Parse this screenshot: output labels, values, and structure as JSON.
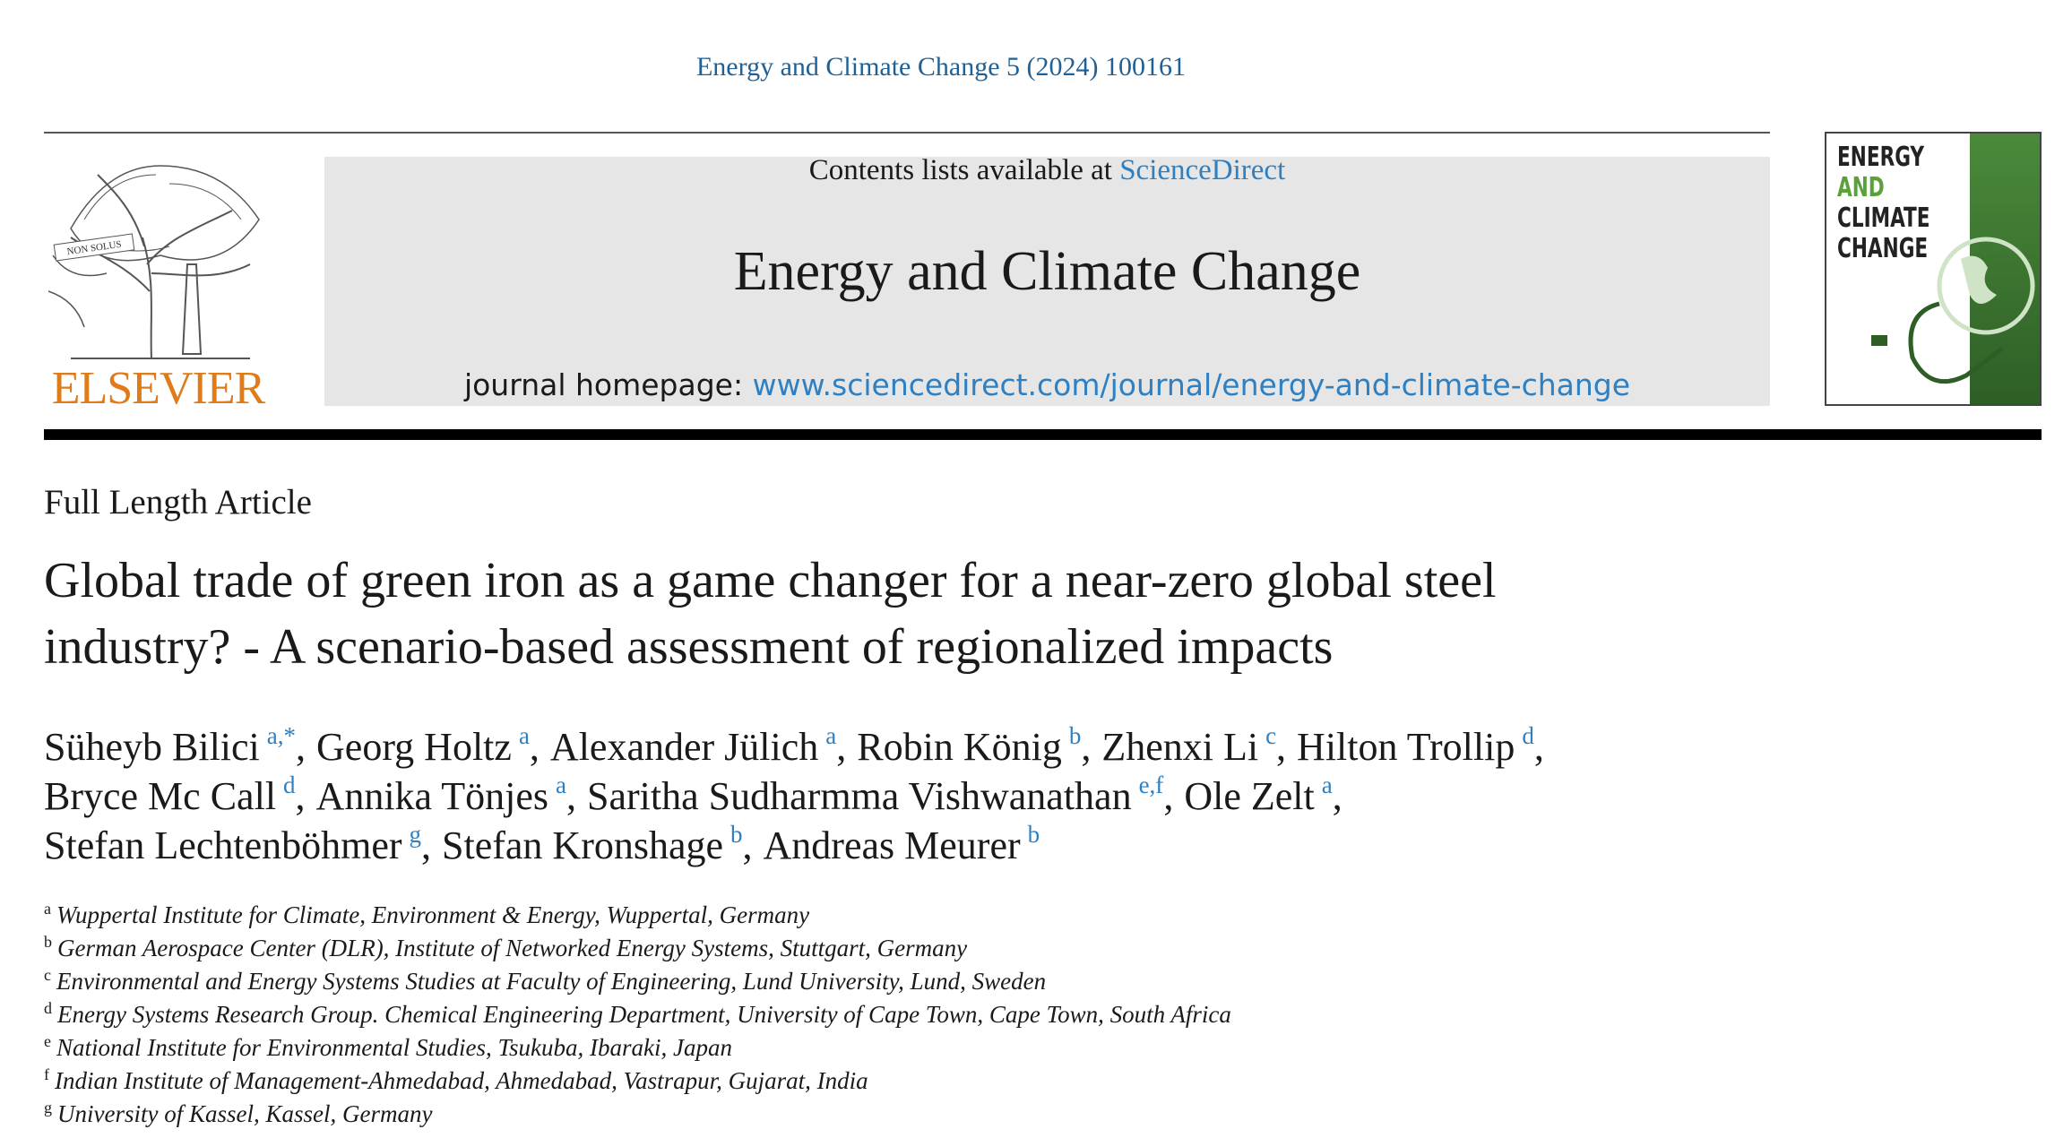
{
  "header": {
    "citation": "Energy and Climate Change 5 (2024) 100161",
    "contents_prefix": "Contents lists available at",
    "contents_link": "ScienceDirect",
    "journal_title": "Energy and Climate Change",
    "homepage_prefix": "journal homepage:",
    "homepage_link": "www.sciencedirect.com/journal/energy-and-climate-change",
    "publisher": "ELSEVIER",
    "logo_motto": "NON SOLUS",
    "cover_lines": [
      "ENERGY",
      "AND",
      "CLIMATE",
      "CHANGE"
    ]
  },
  "article": {
    "type": "Full Length Article",
    "title": [
      "Global trade of green iron as a game changer for a near-zero global steel",
      "industry? - A scenario-based assessment of regionalized impacts"
    ],
    "authors": [
      [
        {
          "name": "Süheyb Bilici",
          "sup": "a,*"
        },
        {
          "name": "Georg Holtz",
          "sup": "a"
        },
        {
          "name": "Alexander Jülich",
          "sup": "a"
        },
        {
          "name": "Robin König",
          "sup": "b"
        },
        {
          "name": "Zhenxi Li",
          "sup": "c"
        },
        {
          "name": "Hilton Trollip",
          "sup": "d"
        }
      ],
      [
        {
          "name": "Bryce Mc Call",
          "sup": "d"
        },
        {
          "name": "Annika Tönjes",
          "sup": "a"
        },
        {
          "name": "Saritha Sudharmma Vishwanathan",
          "sup": "e,f"
        },
        {
          "name": "Ole Zelt",
          "sup": "a"
        }
      ],
      [
        {
          "name": "Stefan Lechtenböhmer",
          "sup": "g"
        },
        {
          "name": "Stefan Kronshage",
          "sup": "b"
        },
        {
          "name": "Andreas Meurer",
          "sup": "b"
        }
      ]
    ],
    "affiliations": [
      {
        "mark": "a",
        "text": "Wuppertal Institute for Climate, Environment & Energy, Wuppertal, Germany"
      },
      {
        "mark": "b",
        "text": "German Aerospace Center (DLR), Institute of Networked Energy Systems, Stuttgart, Germany"
      },
      {
        "mark": "c",
        "text": "Environmental and Energy Systems Studies at Faculty of Engineering, Lund University, Lund, Sweden"
      },
      {
        "mark": "d",
        "text": "Energy Systems Research Group. Chemical Engineering Department, University of Cape Town, Cape Town, South Africa"
      },
      {
        "mark": "e",
        "text": "National Institute for Environmental Studies, Tsukuba, Ibaraki, Japan"
      },
      {
        "mark": "f",
        "text": "Indian Institute of Management-Ahmedabad, Ahmedabad, Vastrapur, Gujarat, India"
      },
      {
        "mark": "g",
        "text": "University of Kassel, Kassel, Germany"
      }
    ]
  }
}
